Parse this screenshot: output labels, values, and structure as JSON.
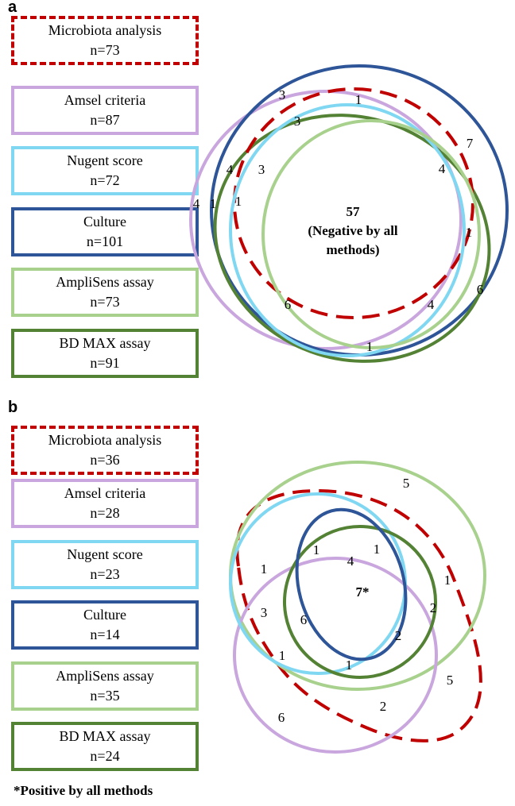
{
  "panel_a": {
    "label": "a",
    "legend": [
      {
        "name": "Microbiota analysis",
        "count": "n=73",
        "color": "#c00000",
        "style": "dashed"
      },
      {
        "name": "Amsel criteria",
        "count": "n=87",
        "color": "#c9a7de",
        "style": "solid"
      },
      {
        "name": "Nugent score",
        "count": "n=72",
        "color": "#7fd7f2",
        "style": "solid"
      },
      {
        "name": "Culture",
        "count": "n=101",
        "color": "#2e5597",
        "style": "solid"
      },
      {
        "name": "AmpliSens assay",
        "count": "n=73",
        "color": "#a9d18e",
        "style": "solid"
      },
      {
        "name": "BD MAX assay",
        "count": "n=91",
        "color": "#548235",
        "style": "solid"
      }
    ],
    "center_count": "57",
    "center_text_line1": "(Negative by all",
    "center_text_line2": "methods)",
    "region_counts": [
      "3",
      "1",
      "3",
      "7",
      "4",
      "3",
      "4",
      "4",
      "1",
      "1",
      "1",
      "6",
      "6",
      "4",
      "1"
    ]
  },
  "panel_b": {
    "label": "b",
    "legend": [
      {
        "name": "Microbiota analysis",
        "count": "n=36",
        "color": "#c00000",
        "style": "dashed"
      },
      {
        "name": "Amsel criteria",
        "count": "n=28",
        "color": "#c9a7de",
        "style": "solid"
      },
      {
        "name": "Nugent score",
        "count": "n=23",
        "color": "#7fd7f2",
        "style": "solid"
      },
      {
        "name": "Culture",
        "count": "n=14",
        "color": "#2e5597",
        "style": "solid"
      },
      {
        "name": "AmpliSens assay",
        "count": "n=35",
        "color": "#a9d18e",
        "style": "solid"
      },
      {
        "name": "BD MAX assay",
        "count": "n=24",
        "color": "#548235",
        "style": "solid"
      }
    ],
    "center_count": "7*",
    "region_counts": [
      "5",
      "1",
      "1",
      "4",
      "1",
      "1",
      "2",
      "3",
      "6",
      "2",
      "1",
      "1",
      "5",
      "2",
      "6"
    ]
  },
  "footnote": "*Positive by all methods"
}
